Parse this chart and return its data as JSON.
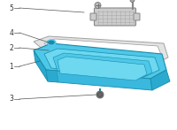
{
  "bg_color": "#ffffff",
  "pan_color": "#4ec8e8",
  "pan_edge_color": "#1a8aaa",
  "pan_top_color": "#6dd8f0",
  "pan_side_color": "#2aaace",
  "pan_bottom_color": "#3ab8de",
  "gasket_color": "#e0e0e0",
  "gasket_edge_color": "#999999",
  "filter_color": "#cccccc",
  "filter_edge_color": "#888888",
  "filter_grid_color": "#aaaaaa",
  "bolt_color": "#5bc8e8",
  "bolt_dark": "#1a8aaa",
  "line_color": "#555555",
  "label_color": "#333333",
  "figsize": [
    2.0,
    1.47
  ],
  "dpi": 100
}
